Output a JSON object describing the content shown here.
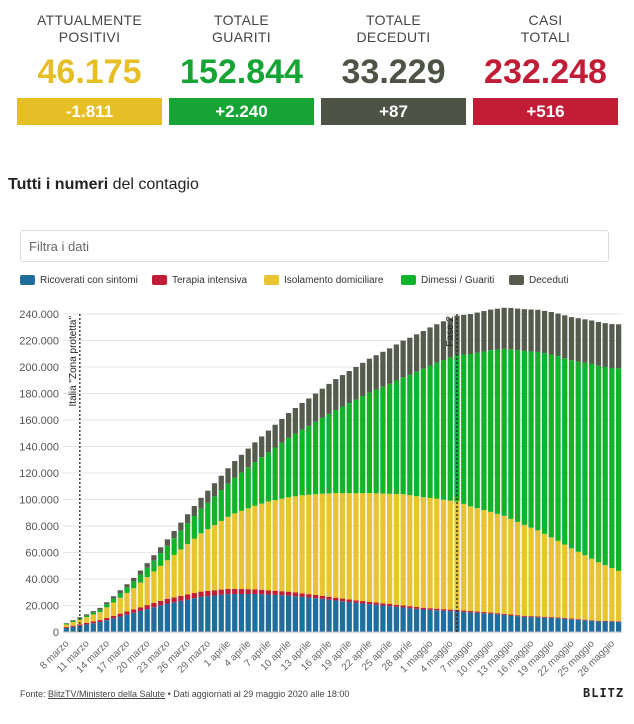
{
  "stats": [
    {
      "label": "ATTUALMENTE\nPOSITIVI",
      "value": "46.175",
      "delta": "-1.811",
      "color": "#e6be26",
      "delta_bg": "#e6be26"
    },
    {
      "label": "TOTALE\nGUARITI",
      "value": "152.844",
      "delta": "+2.240",
      "color": "#16a535",
      "delta_bg": "#16a535"
    },
    {
      "label": "TOTALE\nDECEDUTI",
      "value": "33.229",
      "delta": "+87",
      "color": "#4e5445",
      "delta_bg": "#4e5445"
    },
    {
      "label": "CASI\nTOTALI",
      "value": "232.248",
      "delta": "+516",
      "color": "#c21d36",
      "delta_bg": "#c21d36"
    }
  ],
  "heading": {
    "bold": "Tutti i numeri",
    "rest": " del contagio"
  },
  "filter": {
    "placeholder": "Filtra i dati"
  },
  "legend": [
    {
      "name": "Ricoverati con sintomi",
      "color": "#1f6e9d"
    },
    {
      "name": "Terapia intensiva",
      "color": "#c21d36"
    },
    {
      "name": "Isolamento domiciliare",
      "color": "#e8c530"
    },
    {
      "name": "Dimessi / Guariti",
      "color": "#10b32a"
    },
    {
      "name": "Deceduti",
      "color": "#555b4d"
    }
  ],
  "chart_data": {
    "type": "bar",
    "stacked": true,
    "ylim": [
      0,
      240000
    ],
    "yticks": [
      "0",
      "20.000",
      "40.000",
      "60.000",
      "80.000",
      "100.000",
      "120.000",
      "140.000",
      "160.000",
      "180.000",
      "200.000",
      "220.000",
      "240.000"
    ],
    "xticks": [
      "8 marzo",
      "11 marzo",
      "14 marzo",
      "17 marzo",
      "20 marzo",
      "23 marzo",
      "26 marzo",
      "29 marzo",
      "1 aprile",
      "4 aprile",
      "7 aprile",
      "10 aprile",
      "13 aprile",
      "16 aprile",
      "19 aprile",
      "22 aprile",
      "25 aprile",
      "28 aprile",
      "1 maggio",
      "4 maggio",
      "7 maggio",
      "10 maggio",
      "13 maggio",
      "16 maggio",
      "19 maggio",
      "22 maggio",
      "25 maggio",
      "28 maggio"
    ],
    "xtick_every": 3,
    "annotations": [
      {
        "label": "Italia \"Zona protetta\"",
        "day_index": 2
      },
      {
        "label": "Fase 2",
        "day_index": 58
      }
    ],
    "series": [
      {
        "name": "Ricoverati con sintomi",
        "color": "#1f6e9d",
        "anchors": [
          [
            0,
            3000
          ],
          [
            5,
            7500
          ],
          [
            10,
            14500
          ],
          [
            15,
            21500
          ],
          [
            20,
            26500
          ],
          [
            24,
            28600
          ],
          [
            28,
            28700
          ],
          [
            33,
            27500
          ],
          [
            38,
            25000
          ],
          [
            43,
            22000
          ],
          [
            48,
            19500
          ],
          [
            53,
            17000
          ],
          [
            58,
            15500
          ],
          [
            63,
            13800
          ],
          [
            68,
            11500
          ],
          [
            73,
            10400
          ],
          [
            79,
            8000
          ],
          [
            82,
            7700
          ]
        ]
      },
      {
        "name": "Terapia intensiva",
        "color": "#c21d36",
        "anchors": [
          [
            0,
            700
          ],
          [
            5,
            1500
          ],
          [
            10,
            2600
          ],
          [
            15,
            3600
          ],
          [
            20,
            4000
          ],
          [
            25,
            3900
          ],
          [
            30,
            3300
          ],
          [
            35,
            2700
          ],
          [
            40,
            2100
          ],
          [
            45,
            1800
          ],
          [
            50,
            1500
          ],
          [
            55,
            1200
          ],
          [
            60,
            1000
          ],
          [
            65,
            800
          ],
          [
            70,
            650
          ],
          [
            75,
            550
          ],
          [
            82,
            450
          ]
        ]
      },
      {
        "name": "Isolamento domiciliare",
        "color": "#e8c530",
        "anchors": [
          [
            0,
            2000
          ],
          [
            5,
            6000
          ],
          [
            10,
            16000
          ],
          [
            15,
            29000
          ],
          [
            20,
            44000
          ],
          [
            25,
            57000
          ],
          [
            30,
            67000
          ],
          [
            35,
            74000
          ],
          [
            40,
            79000
          ],
          [
            45,
            82000
          ],
          [
            50,
            84000
          ],
          [
            55,
            83000
          ],
          [
            58,
            82000
          ],
          [
            60,
            79000
          ],
          [
            65,
            74000
          ],
          [
            70,
            65000
          ],
          [
            75,
            53000
          ],
          [
            80,
            42000
          ],
          [
            82,
            38000
          ]
        ]
      },
      {
        "name": "Dimessi / Guariti",
        "color": "#10b32a",
        "anchors": [
          [
            0,
            600
          ],
          [
            3,
            1100
          ],
          [
            6,
            2300
          ],
          [
            9,
            4200
          ],
          [
            12,
            7000
          ],
          [
            15,
            11000
          ],
          [
            18,
            15700
          ],
          [
            21,
            20000
          ],
          [
            24,
            25000
          ],
          [
            27,
            31000
          ],
          [
            30,
            37000
          ],
          [
            33,
            45000
          ],
          [
            36,
            52000
          ],
          [
            39,
            60000
          ],
          [
            42,
            68000
          ],
          [
            45,
            76000
          ],
          [
            48,
            83000
          ],
          [
            51,
            91000
          ],
          [
            54,
            100000
          ],
          [
            57,
            108000
          ],
          [
            60,
            115000
          ],
          [
            63,
            122000
          ],
          [
            66,
            128000
          ],
          [
            69,
            133000
          ],
          [
            72,
            138000
          ],
          [
            75,
            142000
          ],
          [
            78,
            147000
          ],
          [
            81,
            151000
          ],
          [
            82,
            152844
          ]
        ]
      },
      {
        "name": "Deceduti",
        "color": "#555b4d",
        "anchors": [
          [
            0,
            400
          ],
          [
            5,
            1300
          ],
          [
            10,
            2600
          ],
          [
            15,
            4800
          ],
          [
            20,
            8200
          ],
          [
            25,
            12500
          ],
          [
            30,
            16500
          ],
          [
            35,
            20000
          ],
          [
            40,
            23300
          ],
          [
            45,
            25500
          ],
          [
            50,
            27600
          ],
          [
            55,
            29000
          ],
          [
            58,
            29800
          ],
          [
            65,
            31000
          ],
          [
            70,
            31800
          ],
          [
            75,
            32500
          ],
          [
            82,
            33229
          ]
        ]
      }
    ]
  },
  "footer": {
    "prefix": "Fonte: ",
    "source": "BlitzTV/Ministero della Salute",
    "suffix": " • Dati aggiornati al 29 maggio 2020 alle 18:00"
  },
  "logo": "BLITZ"
}
